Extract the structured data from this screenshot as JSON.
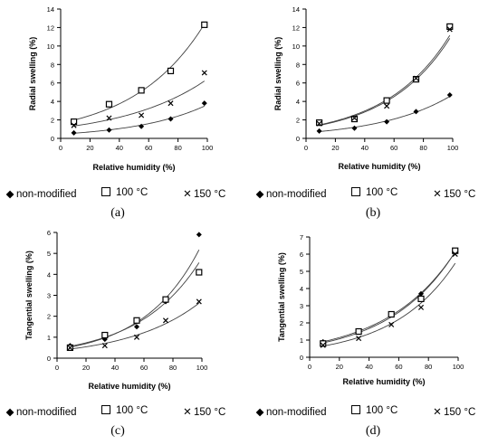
{
  "chart_data": [
    {
      "id": "a",
      "type": "scatter",
      "caption": "(a)",
      "xlabel": "Relative humidity (%)",
      "ylabel": "Radial swelling (%)",
      "xlim": [
        0,
        100
      ],
      "ylim": [
        0,
        14
      ],
      "xticks": [
        0,
        20,
        40,
        60,
        80,
        100
      ],
      "yticks": [
        0,
        2,
        4,
        6,
        8,
        10,
        12,
        14
      ],
      "trendline": "exponential",
      "series": [
        {
          "name": "non-modified",
          "marker": "diamond",
          "x": [
            9,
            33,
            55,
            75,
            98
          ],
          "y": [
            0.6,
            0.9,
            1.3,
            2.1,
            3.8
          ]
        },
        {
          "name": "100 °C",
          "marker": "square",
          "x": [
            9,
            33,
            55,
            75,
            98
          ],
          "y": [
            1.8,
            3.7,
            5.2,
            7.3,
            12.3
          ]
        },
        {
          "name": "150 °C",
          "marker": "x",
          "x": [
            9,
            33,
            55,
            75,
            98
          ],
          "y": [
            1.4,
            2.2,
            2.5,
            3.8,
            7.1
          ]
        }
      ]
    },
    {
      "id": "b",
      "type": "scatter",
      "caption": "(b)",
      "xlabel": "Relative humidity (%)",
      "ylabel": "Radial swelling (%)",
      "xlim": [
        0,
        100
      ],
      "ylim": [
        0,
        14
      ],
      "xticks": [
        0,
        20,
        40,
        60,
        80,
        100
      ],
      "yticks": [
        0,
        2,
        4,
        6,
        8,
        10,
        12,
        14
      ],
      "trendline": "exponential",
      "series": [
        {
          "name": "non-modified",
          "marker": "diamond",
          "x": [
            9,
            33,
            55,
            75,
            98
          ],
          "y": [
            0.8,
            1.1,
            1.8,
            2.9,
            4.7
          ]
        },
        {
          "name": "100 °C",
          "marker": "square",
          "x": [
            9,
            33,
            55,
            75,
            98
          ],
          "y": [
            1.7,
            2.1,
            4.1,
            6.4,
            12.1
          ]
        },
        {
          "name": "150 °C",
          "marker": "x",
          "x": [
            9,
            33,
            55,
            75,
            98
          ],
          "y": [
            1.6,
            2.2,
            3.5,
            6.5,
            11.8
          ]
        }
      ]
    },
    {
      "id": "c",
      "type": "scatter",
      "caption": "(c)",
      "xlabel": "Relative humidity (%)",
      "ylabel": "Tangential swelling (%)",
      "xlim": [
        0,
        100
      ],
      "ylim": [
        0,
        6
      ],
      "xticks": [
        0,
        20,
        40,
        60,
        80,
        100
      ],
      "yticks": [
        0,
        1,
        2,
        3,
        4,
        5,
        6
      ],
      "trendline": "exponential",
      "series": [
        {
          "name": "non-modified",
          "marker": "diamond",
          "x": [
            9,
            33,
            55,
            75,
            98
          ],
          "y": [
            0.6,
            0.9,
            1.5,
            2.7,
            5.9
          ]
        },
        {
          "name": "100 °C",
          "marker": "square",
          "x": [
            9,
            33,
            55,
            75,
            98
          ],
          "y": [
            0.5,
            1.1,
            1.8,
            2.8,
            4.1
          ]
        },
        {
          "name": "150 °C",
          "marker": "x",
          "x": [
            9,
            33,
            55,
            75,
            98
          ],
          "y": [
            0.5,
            0.6,
            1.0,
            1.8,
            2.7
          ]
        }
      ]
    },
    {
      "id": "d",
      "type": "scatter",
      "caption": "(d)",
      "xlabel": "Relative humidity (%)",
      "ylabel": "Tangential swelling (%)",
      "xlim": [
        0,
        100
      ],
      "ylim": [
        0,
        7
      ],
      "xticks": [
        0,
        20,
        40,
        60,
        80,
        100
      ],
      "yticks": [
        0,
        1,
        2,
        3,
        4,
        5,
        6,
        7
      ],
      "trendline": "exponential",
      "series": [
        {
          "name": "non-modified",
          "marker": "diamond",
          "x": [
            9,
            33,
            55,
            75,
            98
          ],
          "y": [
            0.9,
            1.5,
            2.5,
            3.7,
            6.1
          ]
        },
        {
          "name": "100 °C",
          "marker": "square",
          "x": [
            9,
            33,
            55,
            75,
            98
          ],
          "y": [
            0.8,
            1.5,
            2.5,
            3.4,
            6.2
          ]
        },
        {
          "name": "150 °C",
          "marker": "x",
          "x": [
            9,
            33,
            55,
            75,
            98
          ],
          "y": [
            0.7,
            1.1,
            1.9,
            2.9,
            6.0
          ]
        }
      ]
    }
  ],
  "legend": {
    "non_modified": "non-modified",
    "c100": "100 °C",
    "c150": "150 °C"
  },
  "colors": {
    "marker": "#000000",
    "trendline": "#404040",
    "axis": "#000000"
  }
}
